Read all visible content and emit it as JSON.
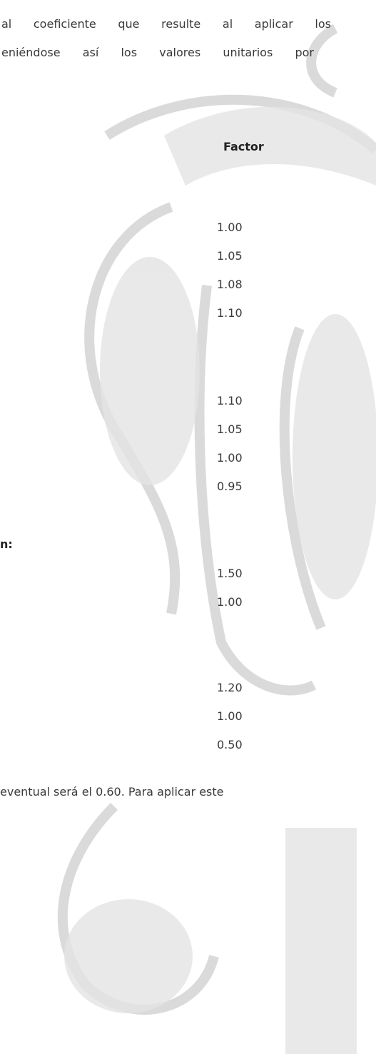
{
  "paragraph_top": [
    "al coeficiente que resulte al aplicar los",
    "eniéndose así los valores unitarios por"
  ],
  "table": {
    "header": "Factor",
    "groups": [
      [
        "1.00",
        "1.05",
        "1.08",
        "1.10"
      ],
      [
        "1.10",
        "1.05",
        "1.00",
        "0.95"
      ],
      [
        "1.50",
        "1.00"
      ],
      [
        "1.20",
        "1.00",
        "0.50"
      ]
    ]
  },
  "fragment": "n:",
  "paragraph_bottom": "eventual será el 0.60. Para aplicar este"
}
